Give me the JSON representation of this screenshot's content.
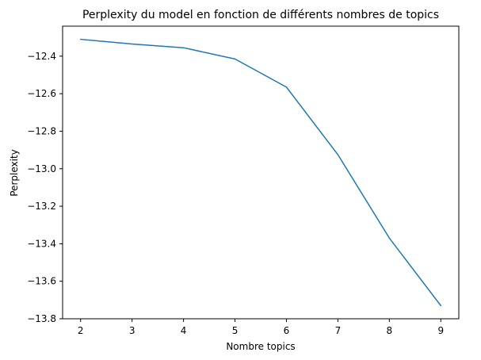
{
  "chart_data": {
    "type": "line",
    "title": "Perplexity du model en fonction de différents nombres de topics",
    "xlabel": "Nombre topics",
    "ylabel": "Perplexity",
    "x": [
      2,
      3,
      4,
      5,
      6,
      7,
      8,
      9
    ],
    "series": [
      {
        "values": [
          -12.31,
          -12.335,
          -12.355,
          -12.415,
          -12.565,
          -12.925,
          -13.37,
          -13.73
        ],
        "color": "#1f77b4"
      }
    ],
    "xlim": [
      1.65,
      9.35
    ],
    "ylim": [
      -13.8,
      -12.24
    ],
    "x_ticks": [
      2,
      3,
      4,
      5,
      6,
      7,
      8,
      9
    ],
    "y_ticks": [
      -13.8,
      -13.6,
      -13.4,
      -13.2,
      -13.0,
      -12.8,
      -12.6,
      -12.4
    ],
    "y_tick_labels": [
      "−13.8",
      "−13.6",
      "−13.4",
      "−13.2",
      "−13.0",
      "−12.8",
      "−12.6",
      "−12.4"
    ],
    "grid": false,
    "legend": "none"
  }
}
